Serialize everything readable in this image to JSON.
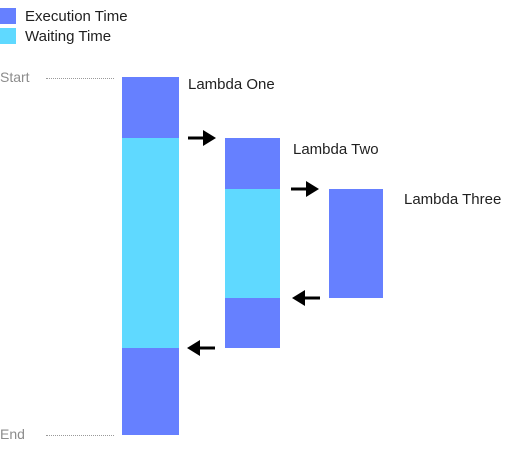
{
  "legend": {
    "items": [
      {
        "label": "Execution Time",
        "color": "#6680ff"
      },
      {
        "label": "Waiting Time",
        "color": "#5fd9ff"
      }
    ]
  },
  "timeline": {
    "start_label": "Start",
    "end_label": "End"
  },
  "lambdas": [
    {
      "name": "Lambda One"
    },
    {
      "name": "Lambda Two"
    },
    {
      "name": "Lambda Three"
    }
  ],
  "colors": {
    "execution": "#6680ff",
    "waiting": "#5fd9ff",
    "arrow": "#000000"
  }
}
